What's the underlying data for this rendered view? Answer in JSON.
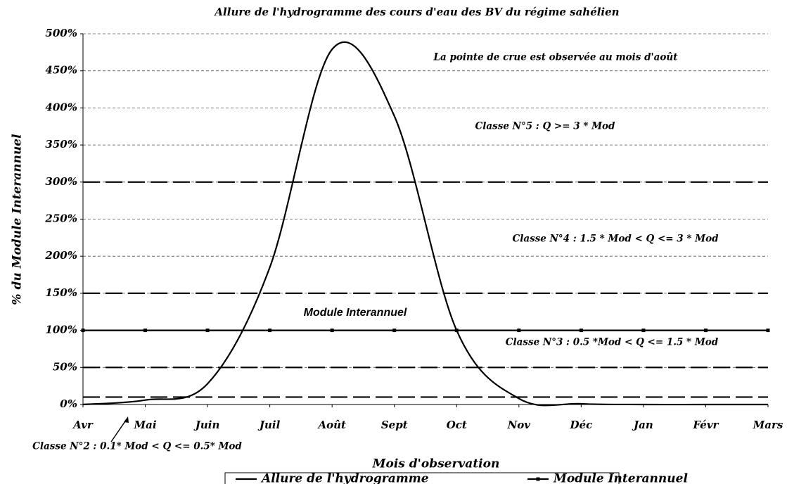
{
  "chart_data": {
    "type": "line",
    "title": "Allure de l'hydrogramme des cours d'eau des BV du régime sahélien",
    "x_label": "Mois d'observation",
    "y_label": "% du Module Interannuel",
    "categories": [
      "Avr",
      "Mai",
      "Juin",
      "Juil",
      "Août",
      "Sept",
      "Oct",
      "Nov",
      "Déc",
      "Jan",
      "Févr",
      "Mars"
    ],
    "series": [
      {
        "name": "Allure de l'hydrogramme",
        "color": "#000000",
        "marker": false,
        "smooth": true,
        "values": [
          0,
          6,
          28,
          185,
          479,
          389,
          100,
          8,
          1,
          0,
          0,
          0
        ]
      },
      {
        "name": "Module Interannuel",
        "color": "#000000",
        "marker": true,
        "smooth": false,
        "values": [
          100,
          100,
          100,
          100,
          100,
          100,
          100,
          100,
          100,
          100,
          100,
          100
        ]
      }
    ],
    "threshold_lines": [
      10,
      50,
      150,
      300
    ],
    "ylim": [
      0,
      500
    ],
    "yticks": [
      {
        "value": 0,
        "label": "0%"
      },
      {
        "value": 50,
        "label": "50%"
      },
      {
        "value": 100,
        "label": "100%"
      },
      {
        "value": 150,
        "label": "150%"
      },
      {
        "value": 200,
        "label": "200%"
      },
      {
        "value": 250,
        "label": "250%"
      },
      {
        "value": 300,
        "label": "300%"
      },
      {
        "value": 350,
        "label": "350%"
      },
      {
        "value": 400,
        "label": "400%"
      },
      {
        "value": 450,
        "label": "450%"
      },
      {
        "value": 500,
        "label": "500%"
      }
    ],
    "grid": true,
    "annotations": [
      "La pointe de crue est observée au mois d'août",
      "Classe N°5 : Q >= 3 * Mod",
      "Classe N°4 : 1.5 * Mod < Q <= 3 * Mod",
      "Module Interannuel",
      "Classe N°3 : 0.5 *Mod < Q <= 1.5 * Mod",
      "Classe N°2 : 0.1* Mod < Q <= 0.5* Mod"
    ]
  }
}
